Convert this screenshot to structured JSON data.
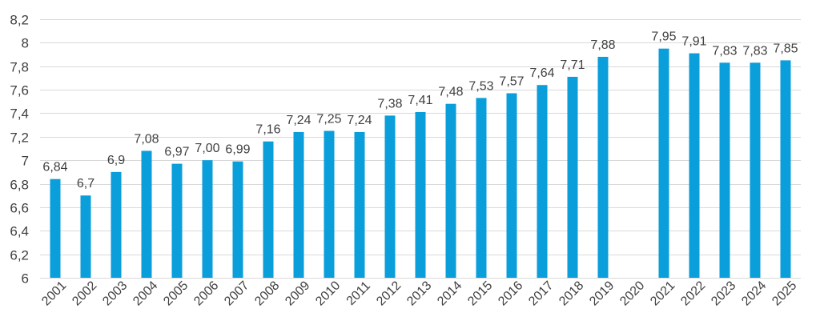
{
  "chart_data": {
    "type": "bar",
    "title": "",
    "xlabel": "",
    "ylabel": "",
    "ylim": [
      6,
      8.2
    ],
    "ytick_step": 0.2,
    "y_tick_labels": [
      "6",
      "6,2",
      "6,4",
      "6,6",
      "6,8",
      "7",
      "7,2",
      "7,4",
      "7,6",
      "7,8",
      "8",
      "8,2"
    ],
    "grid": true,
    "bar_color": "#0a9edb",
    "categories": [
      "2001",
      "2002",
      "2003",
      "2004",
      "2005",
      "2006",
      "2007",
      "2008",
      "2009",
      "2010",
      "2011",
      "2012",
      "2013",
      "2014",
      "2015",
      "2016",
      "2017",
      "2018",
      "2019",
      "2020",
      "2021",
      "2022",
      "2023",
      "2024",
      "2025"
    ],
    "values": [
      6.84,
      6.7,
      6.9,
      7.08,
      6.97,
      7.0,
      6.99,
      7.16,
      7.24,
      7.25,
      7.24,
      7.38,
      7.41,
      7.48,
      7.53,
      7.57,
      7.64,
      7.71,
      7.88,
      null,
      7.95,
      7.91,
      7.83,
      7.83,
      7.85
    ],
    "data_labels": [
      "6,84",
      "6,7",
      "6,9",
      "7,08",
      "6,97",
      "7,00",
      "6,99",
      "7,16",
      "7,24",
      "7,25",
      "7,24",
      "7,38",
      "7,41",
      "7,48",
      "7,53",
      "7,57",
      "7,64",
      "7,71",
      "7,88",
      "",
      "7,95",
      "7,91",
      "7,83",
      "7,83",
      "7,85"
    ]
  }
}
